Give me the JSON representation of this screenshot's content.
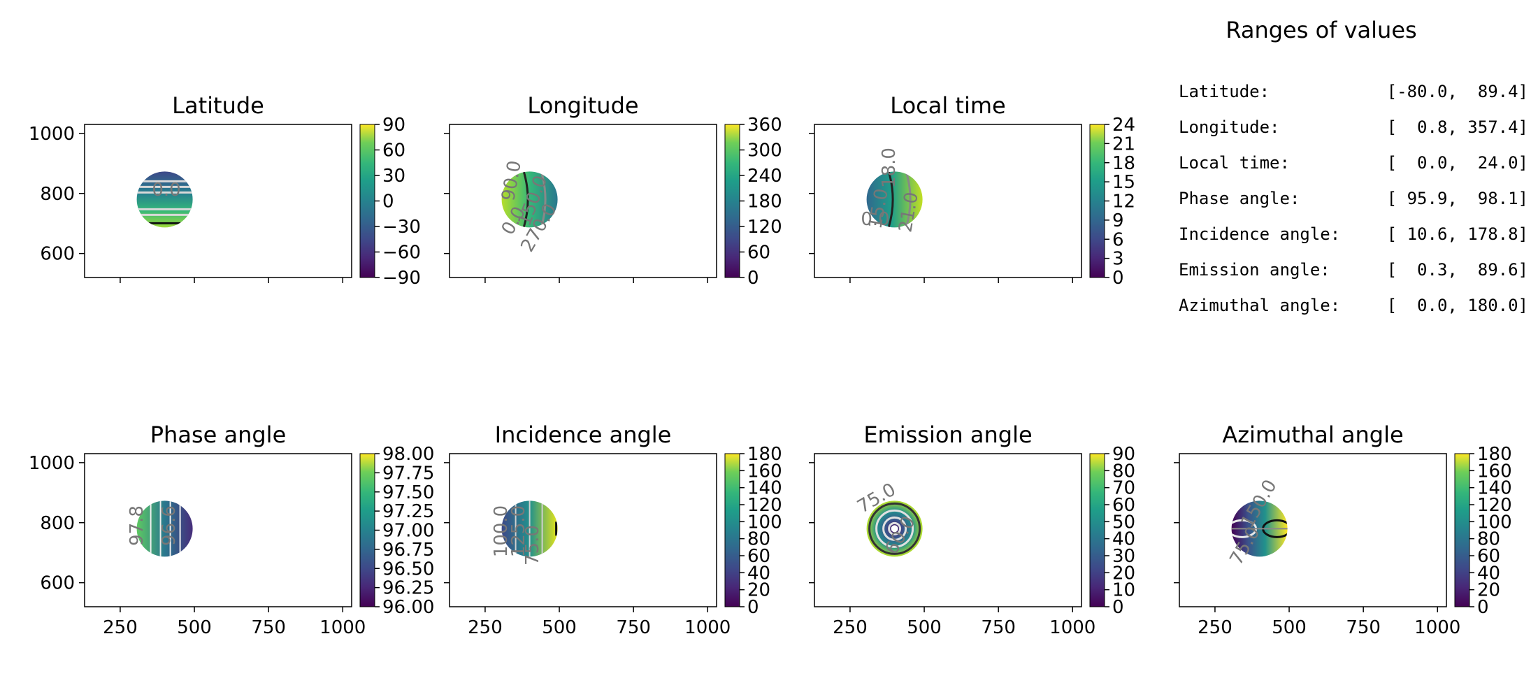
{
  "chart_data": [
    {
      "type": "heatmap",
      "title": "Latitude",
      "colorbar": {
        "min": -90,
        "max": 90,
        "ticks": [
          "90",
          "60",
          "30",
          "0",
          "−30",
          "−60",
          "−90"
        ]
      },
      "contour_labels": [
        "0.0"
      ]
    },
    {
      "type": "heatmap",
      "title": "Longitude",
      "colorbar": {
        "min": 0,
        "max": 360,
        "ticks": [
          "360",
          "300",
          "240",
          "180",
          "120",
          "60",
          "0"
        ]
      },
      "contour_labels": [
        "90.0",
        "150.0",
        "270.0",
        "0.0"
      ]
    },
    {
      "type": "heatmap",
      "title": "Local time",
      "colorbar": {
        "min": 0,
        "max": 24,
        "ticks": [
          "24",
          "21",
          "18",
          "15",
          "12",
          "9",
          "6",
          "3",
          "0"
        ]
      },
      "contour_labels": [
        "18.0",
        "15.0",
        "21.0",
        "0.0"
      ]
    },
    {
      "type": "heatmap",
      "title": "Phase angle",
      "colorbar": {
        "min": 96.0,
        "max": 98.0,
        "ticks": [
          "98.00",
          "97.75",
          "97.50",
          "97.25",
          "97.00",
          "96.75",
          "96.50",
          "96.25",
          "96.00"
        ]
      },
      "contour_labels": [
        "97.8",
        "96.6"
      ]
    },
    {
      "type": "heatmap",
      "title": "Incidence angle",
      "colorbar": {
        "min": 0,
        "max": 180,
        "ticks": [
          "180",
          "160",
          "140",
          "120",
          "100",
          "80",
          "60",
          "40",
          "20",
          "0"
        ]
      },
      "contour_labels": [
        "100.0",
        "125.0",
        "75.0"
      ]
    },
    {
      "type": "heatmap",
      "title": "Emission angle",
      "colorbar": {
        "min": 0,
        "max": 90,
        "ticks": [
          "90",
          "80",
          "70",
          "60",
          "50",
          "40",
          "30",
          "20",
          "10",
          "0"
        ]
      },
      "contour_labels": [
        "75.0",
        "60.0"
      ]
    },
    {
      "type": "heatmap",
      "title": "Azimuthal angle",
      "colorbar": {
        "min": 0,
        "max": 180,
        "ticks": [
          "180",
          "160",
          "140",
          "120",
          "100",
          "80",
          "60",
          "40",
          "20",
          "0"
        ]
      },
      "contour_labels": [
        "150.0",
        "75.0"
      ]
    }
  ],
  "axes": {
    "x_ticks": [
      "250",
      "500",
      "750",
      "1000"
    ],
    "y_ticks": [
      "1000",
      "800",
      "600"
    ],
    "xlim": [
      130,
      1030
    ],
    "ylim": [
      520,
      1030
    ]
  },
  "colormap": "viridis",
  "ranges": {
    "title": "Ranges of values",
    "rows": [
      {
        "label": "Latitude:",
        "value": "[-80.0,  89.4]"
      },
      {
        "label": "Longitude:",
        "value": "[  0.8, 357.4]"
      },
      {
        "label": "Local time:",
        "value": "[  0.0,  24.0]"
      },
      {
        "label": "Phase angle:",
        "value": "[ 95.9,  98.1]"
      },
      {
        "label": "Incidence angle:",
        "value": "[ 10.6, 178.8]"
      },
      {
        "label": "Emission angle:",
        "value": "[  0.3,  89.6]"
      },
      {
        "label": "Azimuthal angle:",
        "value": "[  0.0, 180.0]"
      }
    ]
  }
}
